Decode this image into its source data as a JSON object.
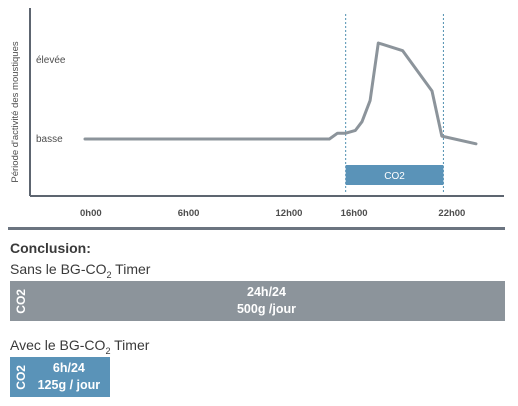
{
  "chart_data": {
    "type": "line",
    "ylabel": "Période d'activité des moustiques",
    "y_levels": [
      "basse",
      "élevée"
    ],
    "x_ticks": [
      "0h00",
      "6h00",
      "12h00",
      "16h00",
      "22h00"
    ],
    "x_tick_values": [
      0,
      6,
      12,
      16,
      22
    ],
    "xlim": [
      0,
      24
    ],
    "ylim": [
      0,
      1
    ],
    "series": [
      {
        "x": [
          0,
          6,
          12,
          15.0,
          15.5,
          16.0,
          16.6,
          17.0,
          17.5,
          18.0,
          19.5,
          21.3,
          21.9,
          24
        ],
        "y": [
          0,
          0,
          0,
          0,
          0.06,
          0.06,
          0.09,
          0.18,
          0.4,
          1.0,
          0.92,
          0.5,
          0.03,
          -0.05
        ],
        "color": "#8c949b"
      }
    ],
    "interval": {
      "start": 16,
      "end": 22,
      "label": "CO2",
      "color": "#5a93b8"
    },
    "colors": {
      "axis": "#5d6570",
      "grid": "#4f8fb0",
      "bar_grey": "#8c949b",
      "bar_blue": "#5a93b8"
    }
  },
  "conclusion": {
    "title": "Conclusion:",
    "without_label": "Sans le BG-CO",
    "without_label_sub": "2",
    "without_label_end": " Timer",
    "without_bar": {
      "co2": "CO2",
      "line1": "24h/24",
      "line2": "500g /jour",
      "hours": 24
    },
    "with_label": "Avec le BG-CO",
    "with_label_sub": "2",
    "with_label_end": " Timer",
    "with_bar": {
      "co2": "CO2",
      "line1": "6h/24",
      "line2": "125g / jour",
      "hours": 6
    }
  }
}
